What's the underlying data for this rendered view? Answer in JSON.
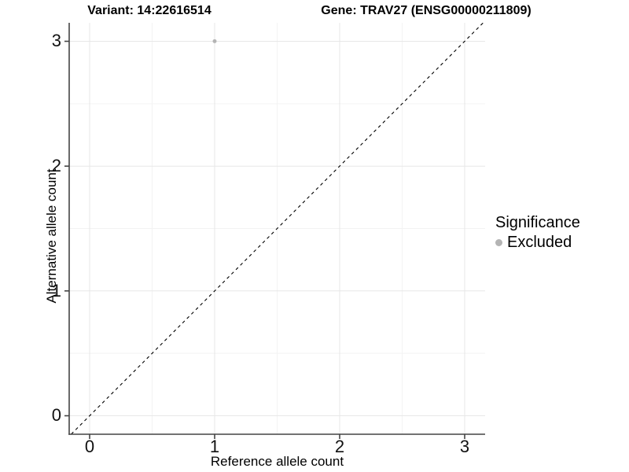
{
  "titles": {
    "variant": "Variant: 14:22616514",
    "gene": "Gene: TRAV27 (ENSG00000211809)"
  },
  "chart_data": {
    "type": "scatter",
    "title": "Variant: 14:22616514 — Gene: TRAV27 (ENSG00000211809)",
    "xlabel": "Reference allele count",
    "ylabel": "Alternative allele count",
    "x_ticks": [
      "0",
      "1",
      "2",
      "3"
    ],
    "y_ticks": [
      "0",
      "1",
      "2",
      "3"
    ],
    "xlim": [
      -0.16,
      3.16
    ],
    "ylim": [
      -0.15,
      3.15
    ],
    "grid": "major and minor gridlines, light gray on white",
    "reference_line": {
      "kind": "identity y=x",
      "style": "dashed",
      "color": "#000000"
    },
    "points": [
      {
        "x": 1,
        "y": 3,
        "series": "Excluded",
        "color": "#b4b4b4",
        "radius": 2.5
      }
    ],
    "legend": {
      "title": "Significance",
      "position": "right",
      "items": [
        {
          "label": "Excluded",
          "color": "#b4b4b4",
          "marker": "circle"
        }
      ]
    },
    "colors": {
      "point_gray": "#b4b4b4",
      "grid_major": "#e7e7e7",
      "grid_minor": "#f3f3f3",
      "axis": "#444444",
      "text": "#000000"
    }
  }
}
